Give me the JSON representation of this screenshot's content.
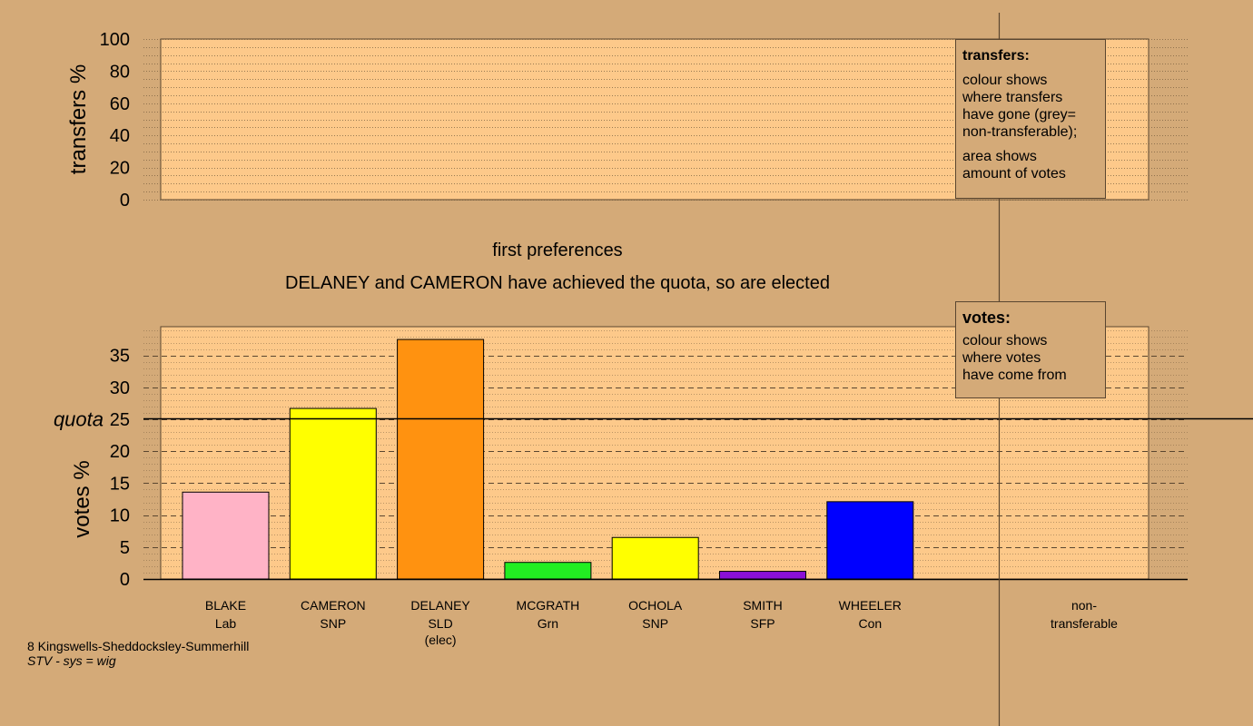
{
  "chart_data": [
    {
      "type": "bar",
      "ylabel": "transfers %",
      "ylim": [
        0,
        100
      ],
      "yticks": [
        0,
        20,
        40,
        60,
        80,
        100
      ],
      "categories": [],
      "values": [],
      "grid": true,
      "legend": {
        "title": "transfers:",
        "lines_1": [
          "colour shows",
          "where transfers",
          "have gone (grey=",
          "non-transferable);"
        ],
        "lines_2": [
          "area shows",
          "amount of votes"
        ]
      }
    },
    {
      "type": "bar",
      "title": "first preferences",
      "subtitle": "DELANEY and CAMERON have achieved the quota, so are elected",
      "ylabel": "votes %",
      "ylim": [
        0,
        39.5
      ],
      "yticks": [
        0,
        5,
        10,
        15,
        20,
        25,
        30,
        35
      ],
      "quota_label": "quota",
      "quota": 25.1,
      "grid": true,
      "candidates": [
        {
          "name": "BLAKE",
          "party": "Lab",
          "note": "",
          "value": 13.6,
          "color": "#ffb3c6"
        },
        {
          "name": "CAMERON",
          "party": "SNP",
          "note": "",
          "value": 26.7,
          "color": "#ffff00"
        },
        {
          "name": "DELANEY",
          "party": "SLD",
          "note": "(elec)",
          "value": 37.5,
          "color": "#ff9210"
        },
        {
          "name": "MCGRATH",
          "party": "Grn",
          "note": "",
          "value": 2.6,
          "color": "#22ee22"
        },
        {
          "name": "OCHOLA",
          "party": "SNP",
          "note": "",
          "value": 6.5,
          "color": "#ffff00"
        },
        {
          "name": "SMITH",
          "party": "SFP",
          "note": "",
          "value": 1.2,
          "color": "#8a10d6"
        },
        {
          "name": "WHEELER",
          "party": "Con",
          "note": "",
          "value": 12.1,
          "color": "#0000ff"
        }
      ],
      "nontransferable": {
        "name": "non-",
        "party": "transferable",
        "value": 0
      },
      "legend": {
        "title": "votes:",
        "lines": [
          "colour shows",
          "where votes",
          "have come from"
        ]
      }
    }
  ],
  "footer": {
    "ward": "8 Kingswells-Sheddocksley-Summerhill",
    "system": "STV - sys = wig"
  },
  "colors": {
    "background": "#d4aa78",
    "plot_fill": "#fdc98a",
    "grid": "#7a6040"
  }
}
